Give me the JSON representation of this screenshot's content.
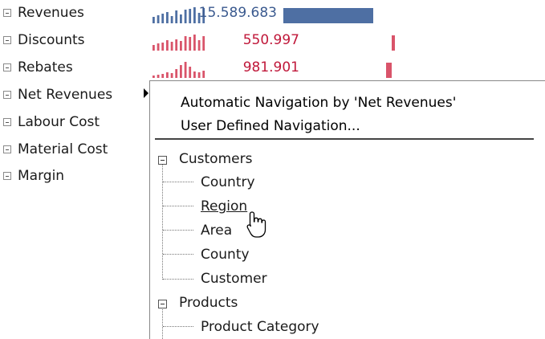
{
  "rows": [
    {
      "label": "Revenues",
      "value": "15.589.683",
      "bar_fraction": 1.0,
      "color": "#4e6fa3",
      "spark": [
        7,
        9,
        11,
        13,
        8,
        14,
        10,
        15,
        16,
        18,
        12,
        17
      ]
    },
    {
      "label": "Discounts",
      "value": "550.997",
      "bar_fraction": 0.035,
      "color": "#d9546a",
      "spark": [
        6,
        8,
        9,
        12,
        10,
        13,
        11,
        16,
        15,
        18,
        12,
        16
      ]
    },
    {
      "label": "Rebates",
      "value": "981.901",
      "bar_fraction": 0.063,
      "color": "#d9546a",
      "spark": [
        3,
        4,
        5,
        7,
        6,
        10,
        15,
        19,
        13,
        8,
        7,
        9
      ]
    },
    {
      "label": "Net Revenues"
    },
    {
      "label": "Labour Cost"
    },
    {
      "label": "Material Cost"
    },
    {
      "label": "Margin"
    }
  ],
  "menu": {
    "auto_nav": "Automatic Navigation by 'Net Revenues'",
    "user_nav": "User Defined Navigation...",
    "groups": [
      {
        "label": "Customers",
        "children": [
          "Country",
          "Region",
          "Area",
          "County",
          "Customer"
        ]
      },
      {
        "label": "Products",
        "children": [
          "Product Category"
        ]
      }
    ]
  }
}
